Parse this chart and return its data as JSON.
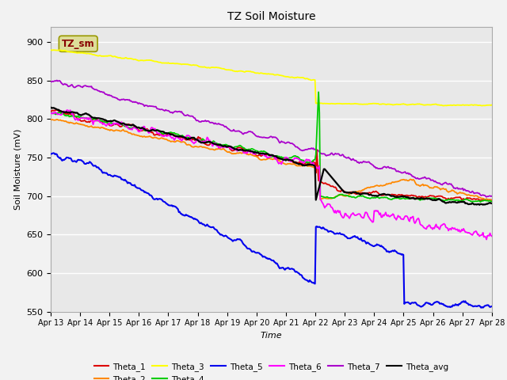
{
  "title": "TZ Soil Moisture",
  "xlabel": "Time",
  "ylabel": "Soil Moisture (mV)",
  "ylim": [
    550,
    920
  ],
  "yticks": [
    550,
    600,
    650,
    700,
    750,
    800,
    850,
    900
  ],
  "series": {
    "Theta_1": {
      "color": "#dd0000",
      "lw": 1.3
    },
    "Theta_2": {
      "color": "#ff8800",
      "lw": 1.3
    },
    "Theta_3": {
      "color": "#ffff00",
      "lw": 1.3
    },
    "Theta_4": {
      "color": "#00cc00",
      "lw": 1.3
    },
    "Theta_5": {
      "color": "#0000ee",
      "lw": 1.5
    },
    "Theta_6": {
      "color": "#ff00ff",
      "lw": 1.3
    },
    "Theta_7": {
      "color": "#aa00cc",
      "lw": 1.3
    },
    "Theta_avg": {
      "color": "#000000",
      "lw": 1.6
    }
  },
  "legend_box_facecolor": "#dddd99",
  "legend_box_edgecolor": "#999900",
  "legend_text": "TZ_sm",
  "legend_text_color": "#880000",
  "plot_bg": "#e8e8e8",
  "fig_bg": "#f2f2f2",
  "grid_color": "#ffffff",
  "figsize": [
    6.4,
    4.8
  ],
  "dpi": 100
}
